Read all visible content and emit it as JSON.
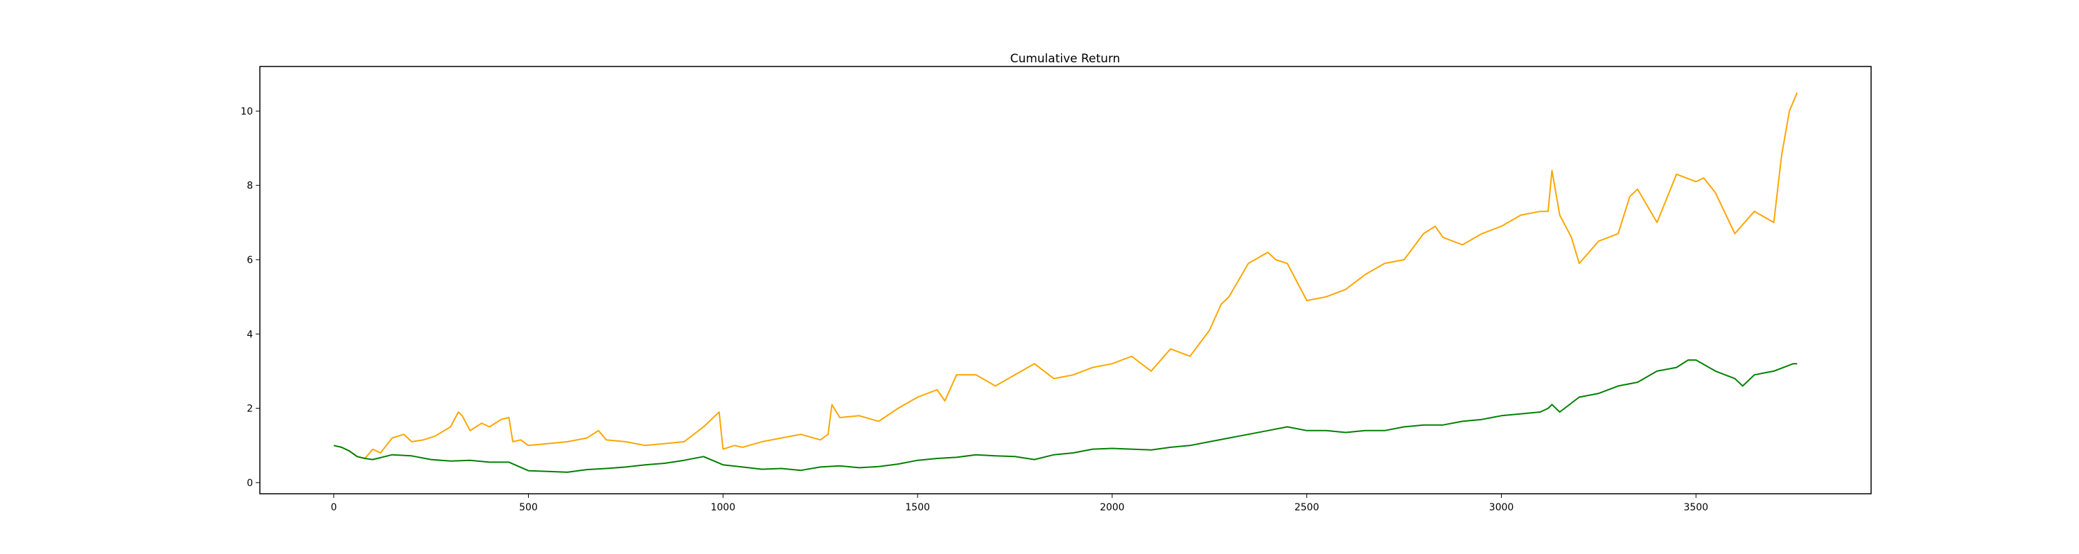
{
  "chart_data": {
    "type": "line",
    "title": "Cumulative Return",
    "xlabel": "",
    "ylabel": "",
    "xlim": [
      -190,
      3950
    ],
    "ylim": [
      -0.3,
      11.2
    ],
    "xticks": [
      0,
      500,
      1000,
      1500,
      2000,
      2500,
      3000,
      3500
    ],
    "yticks": [
      0,
      2,
      4,
      6,
      8,
      10
    ],
    "grid": false,
    "legend": "none",
    "series": [
      {
        "color": "#ffa500",
        "x": [
          0,
          20,
          40,
          60,
          80,
          100,
          120,
          150,
          180,
          200,
          230,
          260,
          300,
          320,
          330,
          350,
          380,
          400,
          430,
          450,
          460,
          480,
          500,
          550,
          600,
          650,
          680,
          700,
          750,
          800,
          850,
          900,
          950,
          980,
          990,
          1000,
          1030,
          1050,
          1100,
          1150,
          1200,
          1250,
          1270,
          1280,
          1300,
          1350,
          1400,
          1450,
          1500,
          1550,
          1570,
          1600,
          1650,
          1700,
          1750,
          1800,
          1850,
          1900,
          1950,
          2000,
          2050,
          2100,
          2150,
          2200,
          2250,
          2280,
          2300,
          2350,
          2400,
          2420,
          2450,
          2500,
          2550,
          2600,
          2650,
          2700,
          2750,
          2800,
          2830,
          2850,
          2900,
          2950,
          3000,
          3050,
          3100,
          3120,
          3130,
          3150,
          3180,
          3200,
          3250,
          3300,
          3330,
          3350,
          3400,
          3450,
          3500,
          3520,
          3550,
          3600,
          3650,
          3700,
          3720,
          3740,
          3760
        ],
        "y": [
          1.0,
          0.95,
          0.85,
          0.7,
          0.65,
          0.9,
          0.8,
          1.2,
          1.3,
          1.1,
          1.15,
          1.25,
          1.5,
          1.9,
          1.8,
          1.4,
          1.6,
          1.5,
          1.7,
          1.75,
          1.1,
          1.15,
          1.0,
          1.05,
          1.1,
          1.2,
          1.4,
          1.15,
          1.1,
          1.0,
          1.05,
          1.1,
          1.5,
          1.8,
          1.9,
          0.9,
          1.0,
          0.95,
          1.1,
          1.2,
          1.3,
          1.15,
          1.3,
          2.1,
          1.75,
          1.8,
          1.65,
          2.0,
          2.3,
          2.5,
          2.2,
          2.9,
          2.9,
          2.6,
          2.9,
          3.2,
          2.8,
          2.9,
          3.1,
          3.2,
          3.4,
          3.0,
          3.6,
          3.4,
          4.1,
          4.8,
          5.0,
          5.9,
          6.2,
          6.0,
          5.9,
          4.9,
          5.0,
          5.2,
          5.6,
          5.9,
          6.0,
          6.7,
          6.9,
          6.6,
          6.4,
          6.7,
          6.9,
          7.2,
          7.3,
          7.3,
          8.4,
          7.2,
          6.6,
          5.9,
          6.5,
          6.7,
          7.7,
          7.9,
          7.0,
          8.3,
          8.1,
          8.2,
          7.8,
          6.7,
          7.3,
          7.0,
          8.8,
          10.0,
          10.5
        ]
      },
      {
        "color": "#008000",
        "x": [
          0,
          20,
          40,
          60,
          80,
          100,
          150,
          200,
          250,
          300,
          350,
          400,
          450,
          500,
          550,
          600,
          650,
          700,
          750,
          800,
          850,
          900,
          950,
          1000,
          1050,
          1100,
          1150,
          1200,
          1250,
          1300,
          1350,
          1400,
          1450,
          1500,
          1550,
          1600,
          1650,
          1700,
          1750,
          1800,
          1850,
          1900,
          1950,
          2000,
          2050,
          2100,
          2150,
          2200,
          2250,
          2300,
          2350,
          2400,
          2450,
          2500,
          2550,
          2600,
          2650,
          2700,
          2750,
          2800,
          2850,
          2900,
          2950,
          3000,
          3050,
          3100,
          3120,
          3130,
          3150,
          3200,
          3250,
          3300,
          3350,
          3400,
          3450,
          3480,
          3500,
          3550,
          3600,
          3620,
          3650,
          3700,
          3750,
          3760
        ],
        "y": [
          1.0,
          0.95,
          0.85,
          0.7,
          0.65,
          0.62,
          0.75,
          0.72,
          0.62,
          0.58,
          0.6,
          0.55,
          0.55,
          0.32,
          0.3,
          0.28,
          0.35,
          0.38,
          0.42,
          0.48,
          0.52,
          0.6,
          0.7,
          0.48,
          0.42,
          0.36,
          0.38,
          0.33,
          0.42,
          0.45,
          0.4,
          0.43,
          0.5,
          0.6,
          0.65,
          0.68,
          0.75,
          0.72,
          0.7,
          0.62,
          0.75,
          0.8,
          0.9,
          0.92,
          0.9,
          0.88,
          0.95,
          1.0,
          1.1,
          1.2,
          1.3,
          1.4,
          1.5,
          1.4,
          1.4,
          1.35,
          1.4,
          1.4,
          1.5,
          1.55,
          1.55,
          1.65,
          1.7,
          1.8,
          1.85,
          1.9,
          2.0,
          2.1,
          1.9,
          2.3,
          2.4,
          2.6,
          2.7,
          3.0,
          3.1,
          3.3,
          3.3,
          3.0,
          2.8,
          2.6,
          2.9,
          3.0,
          3.2,
          3.2
        ]
      }
    ]
  }
}
